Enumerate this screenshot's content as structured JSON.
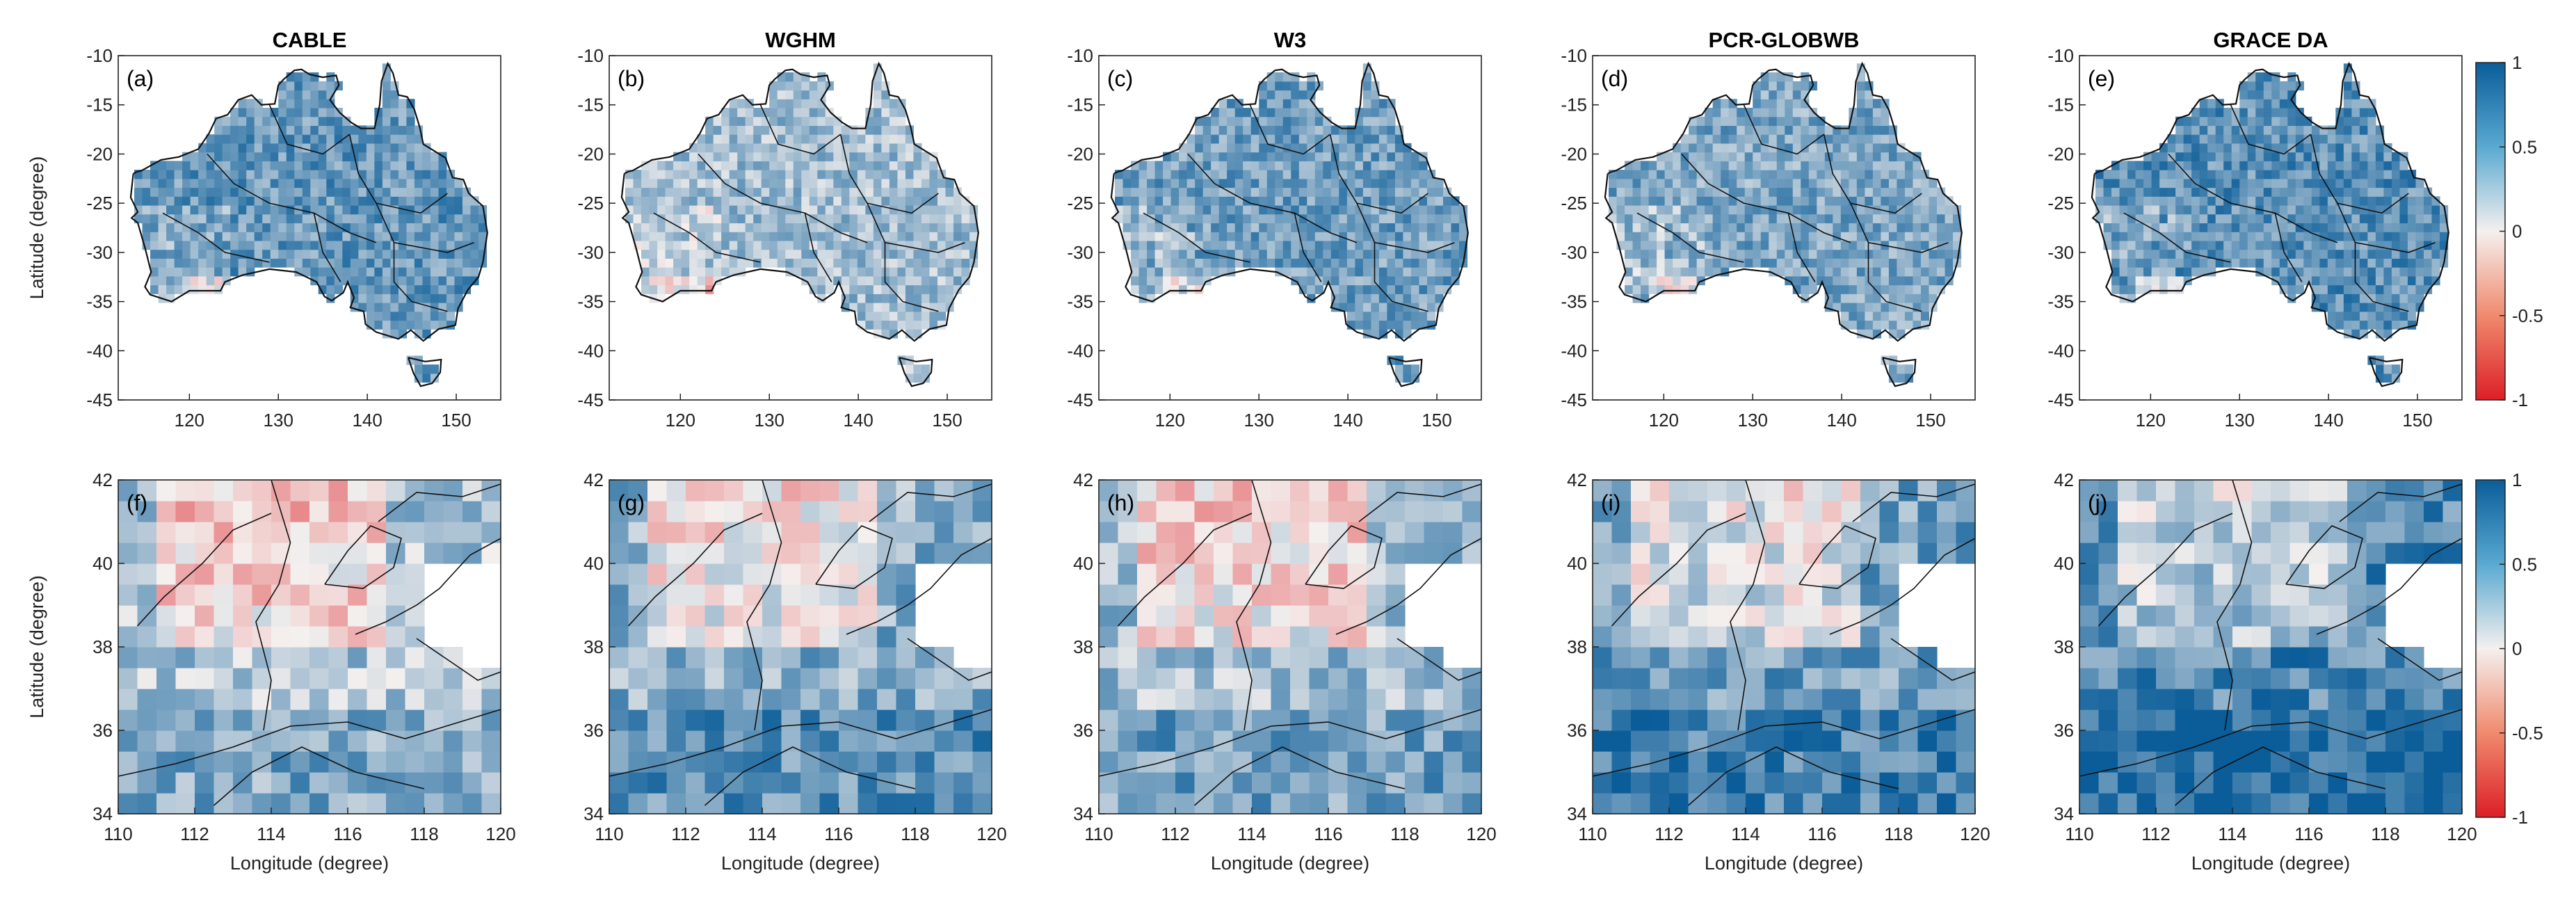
{
  "colors": {
    "low": "#dc1f26",
    "mid": "#f4f0ee",
    "high": "#0a5d99",
    "axis": "#222222",
    "border": "#111111"
  },
  "chart_data": [
    {
      "type": "heatmap",
      "row": "australia",
      "letter": "(a)",
      "title": "CABLE",
      "xlabel": "",
      "ylabel": "Latitude (degree)",
      "xlim": [
        112,
        155
      ],
      "ylim": [
        -45,
        -10
      ],
      "xticks": [
        120,
        130,
        140,
        150
      ],
      "yticks": [
        -10,
        -15,
        -20,
        -25,
        -30,
        -35,
        -40,
        -45
      ],
      "color_range": [
        -1,
        1
      ],
      "mean_value": 0.6
    },
    {
      "type": "heatmap",
      "row": "australia",
      "letter": "(b)",
      "title": "WGHM",
      "xlabel": "",
      "ylabel": "",
      "xlim": [
        112,
        155
      ],
      "ylim": [
        -45,
        -10
      ],
      "xticks": [
        120,
        130,
        140,
        150
      ],
      "yticks": [
        -10,
        -15,
        -20,
        -25,
        -30,
        -35,
        -40,
        -45
      ],
      "color_range": [
        -1,
        1
      ],
      "mean_value": 0.35
    },
    {
      "type": "heatmap",
      "row": "australia",
      "letter": "(c)",
      "title": "W3",
      "xlabel": "",
      "ylabel": "",
      "xlim": [
        112,
        155
      ],
      "ylim": [
        -45,
        -10
      ],
      "xticks": [
        120,
        130,
        140,
        150
      ],
      "yticks": [
        -10,
        -15,
        -20,
        -25,
        -30,
        -35,
        -40,
        -45
      ],
      "color_range": [
        -1,
        1
      ],
      "mean_value": 0.55
    },
    {
      "type": "heatmap",
      "row": "australia",
      "letter": "(d)",
      "title": "PCR-GLOBWB",
      "xlabel": "",
      "ylabel": "",
      "xlim": [
        112,
        155
      ],
      "ylim": [
        -45,
        -10
      ],
      "xticks": [
        120,
        130,
        140,
        150
      ],
      "yticks": [
        -10,
        -15,
        -20,
        -25,
        -30,
        -35,
        -40,
        -45
      ],
      "color_range": [
        -1,
        1
      ],
      "mean_value": 0.5
    },
    {
      "type": "heatmap",
      "row": "australia",
      "letter": "(e)",
      "title": "GRACE DA",
      "xlabel": "",
      "ylabel": "",
      "xlim": [
        112,
        155
      ],
      "ylim": [
        -45,
        -10
      ],
      "xticks": [
        120,
        130,
        140,
        150
      ],
      "yticks": [
        -10,
        -15,
        -20,
        -25,
        -30,
        -35,
        -40,
        -45
      ],
      "color_range": [
        -1,
        1
      ],
      "mean_value": 0.65
    },
    {
      "type": "heatmap",
      "row": "china",
      "letter": "(f)",
      "title": "",
      "xlabel": "Longitude (degree)",
      "ylabel": "Latitude (degree)",
      "xlim": [
        110,
        120
      ],
      "ylim": [
        34,
        42
      ],
      "xticks": [
        110,
        112,
        114,
        116,
        118,
        120
      ],
      "yticks": [
        34,
        36,
        38,
        40,
        42
      ],
      "color_range": [
        -1,
        1
      ],
      "mean_value": 0.3
    },
    {
      "type": "heatmap",
      "row": "china",
      "letter": "(g)",
      "title": "",
      "xlabel": "Longitude (degree)",
      "ylabel": "",
      "xlim": [
        110,
        120
      ],
      "ylim": [
        34,
        42
      ],
      "xticks": [
        110,
        112,
        114,
        116,
        118,
        120
      ],
      "yticks": [
        34,
        36,
        38,
        40,
        42
      ],
      "color_range": [
        -1,
        1
      ],
      "mean_value": 0.45
    },
    {
      "type": "heatmap",
      "row": "china",
      "letter": "(h)",
      "title": "",
      "xlabel": "Longitude (degree)",
      "ylabel": "",
      "xlim": [
        110,
        120
      ],
      "ylim": [
        34,
        42
      ],
      "xticks": [
        110,
        112,
        114,
        116,
        118,
        120
      ],
      "yticks": [
        34,
        36,
        38,
        40,
        42
      ],
      "color_range": [
        -1,
        1
      ],
      "mean_value": 0.35
    },
    {
      "type": "heatmap",
      "row": "china",
      "letter": "(i)",
      "title": "",
      "xlabel": "Longitude (degree)",
      "ylabel": "",
      "xlim": [
        110,
        120
      ],
      "ylim": [
        34,
        42
      ],
      "xticks": [
        110,
        112,
        114,
        116,
        118,
        120
      ],
      "yticks": [
        34,
        36,
        38,
        40,
        42
      ],
      "color_range": [
        -1,
        1
      ],
      "mean_value": 0.55
    },
    {
      "type": "heatmap",
      "row": "china",
      "letter": "(j)",
      "title": "",
      "xlabel": "Longitude (degree)",
      "ylabel": "",
      "xlim": [
        110,
        120
      ],
      "ylim": [
        34,
        42
      ],
      "xticks": [
        110,
        112,
        114,
        116,
        118,
        120
      ],
      "yticks": [
        34,
        36,
        38,
        40,
        42
      ],
      "color_range": [
        -1,
        1
      ],
      "mean_value": 0.7
    }
  ],
  "colorbars": [
    {
      "ticks": [
        1,
        0.5,
        0,
        -0.5,
        -1
      ],
      "labels": [
        "1",
        "0.5",
        "0",
        "-0.5",
        "-1"
      ]
    },
    {
      "ticks": [
        1,
        0.5,
        0,
        -0.5,
        -1
      ],
      "labels": [
        "1",
        "0.5",
        "0",
        "-0.5",
        "-1"
      ]
    }
  ]
}
